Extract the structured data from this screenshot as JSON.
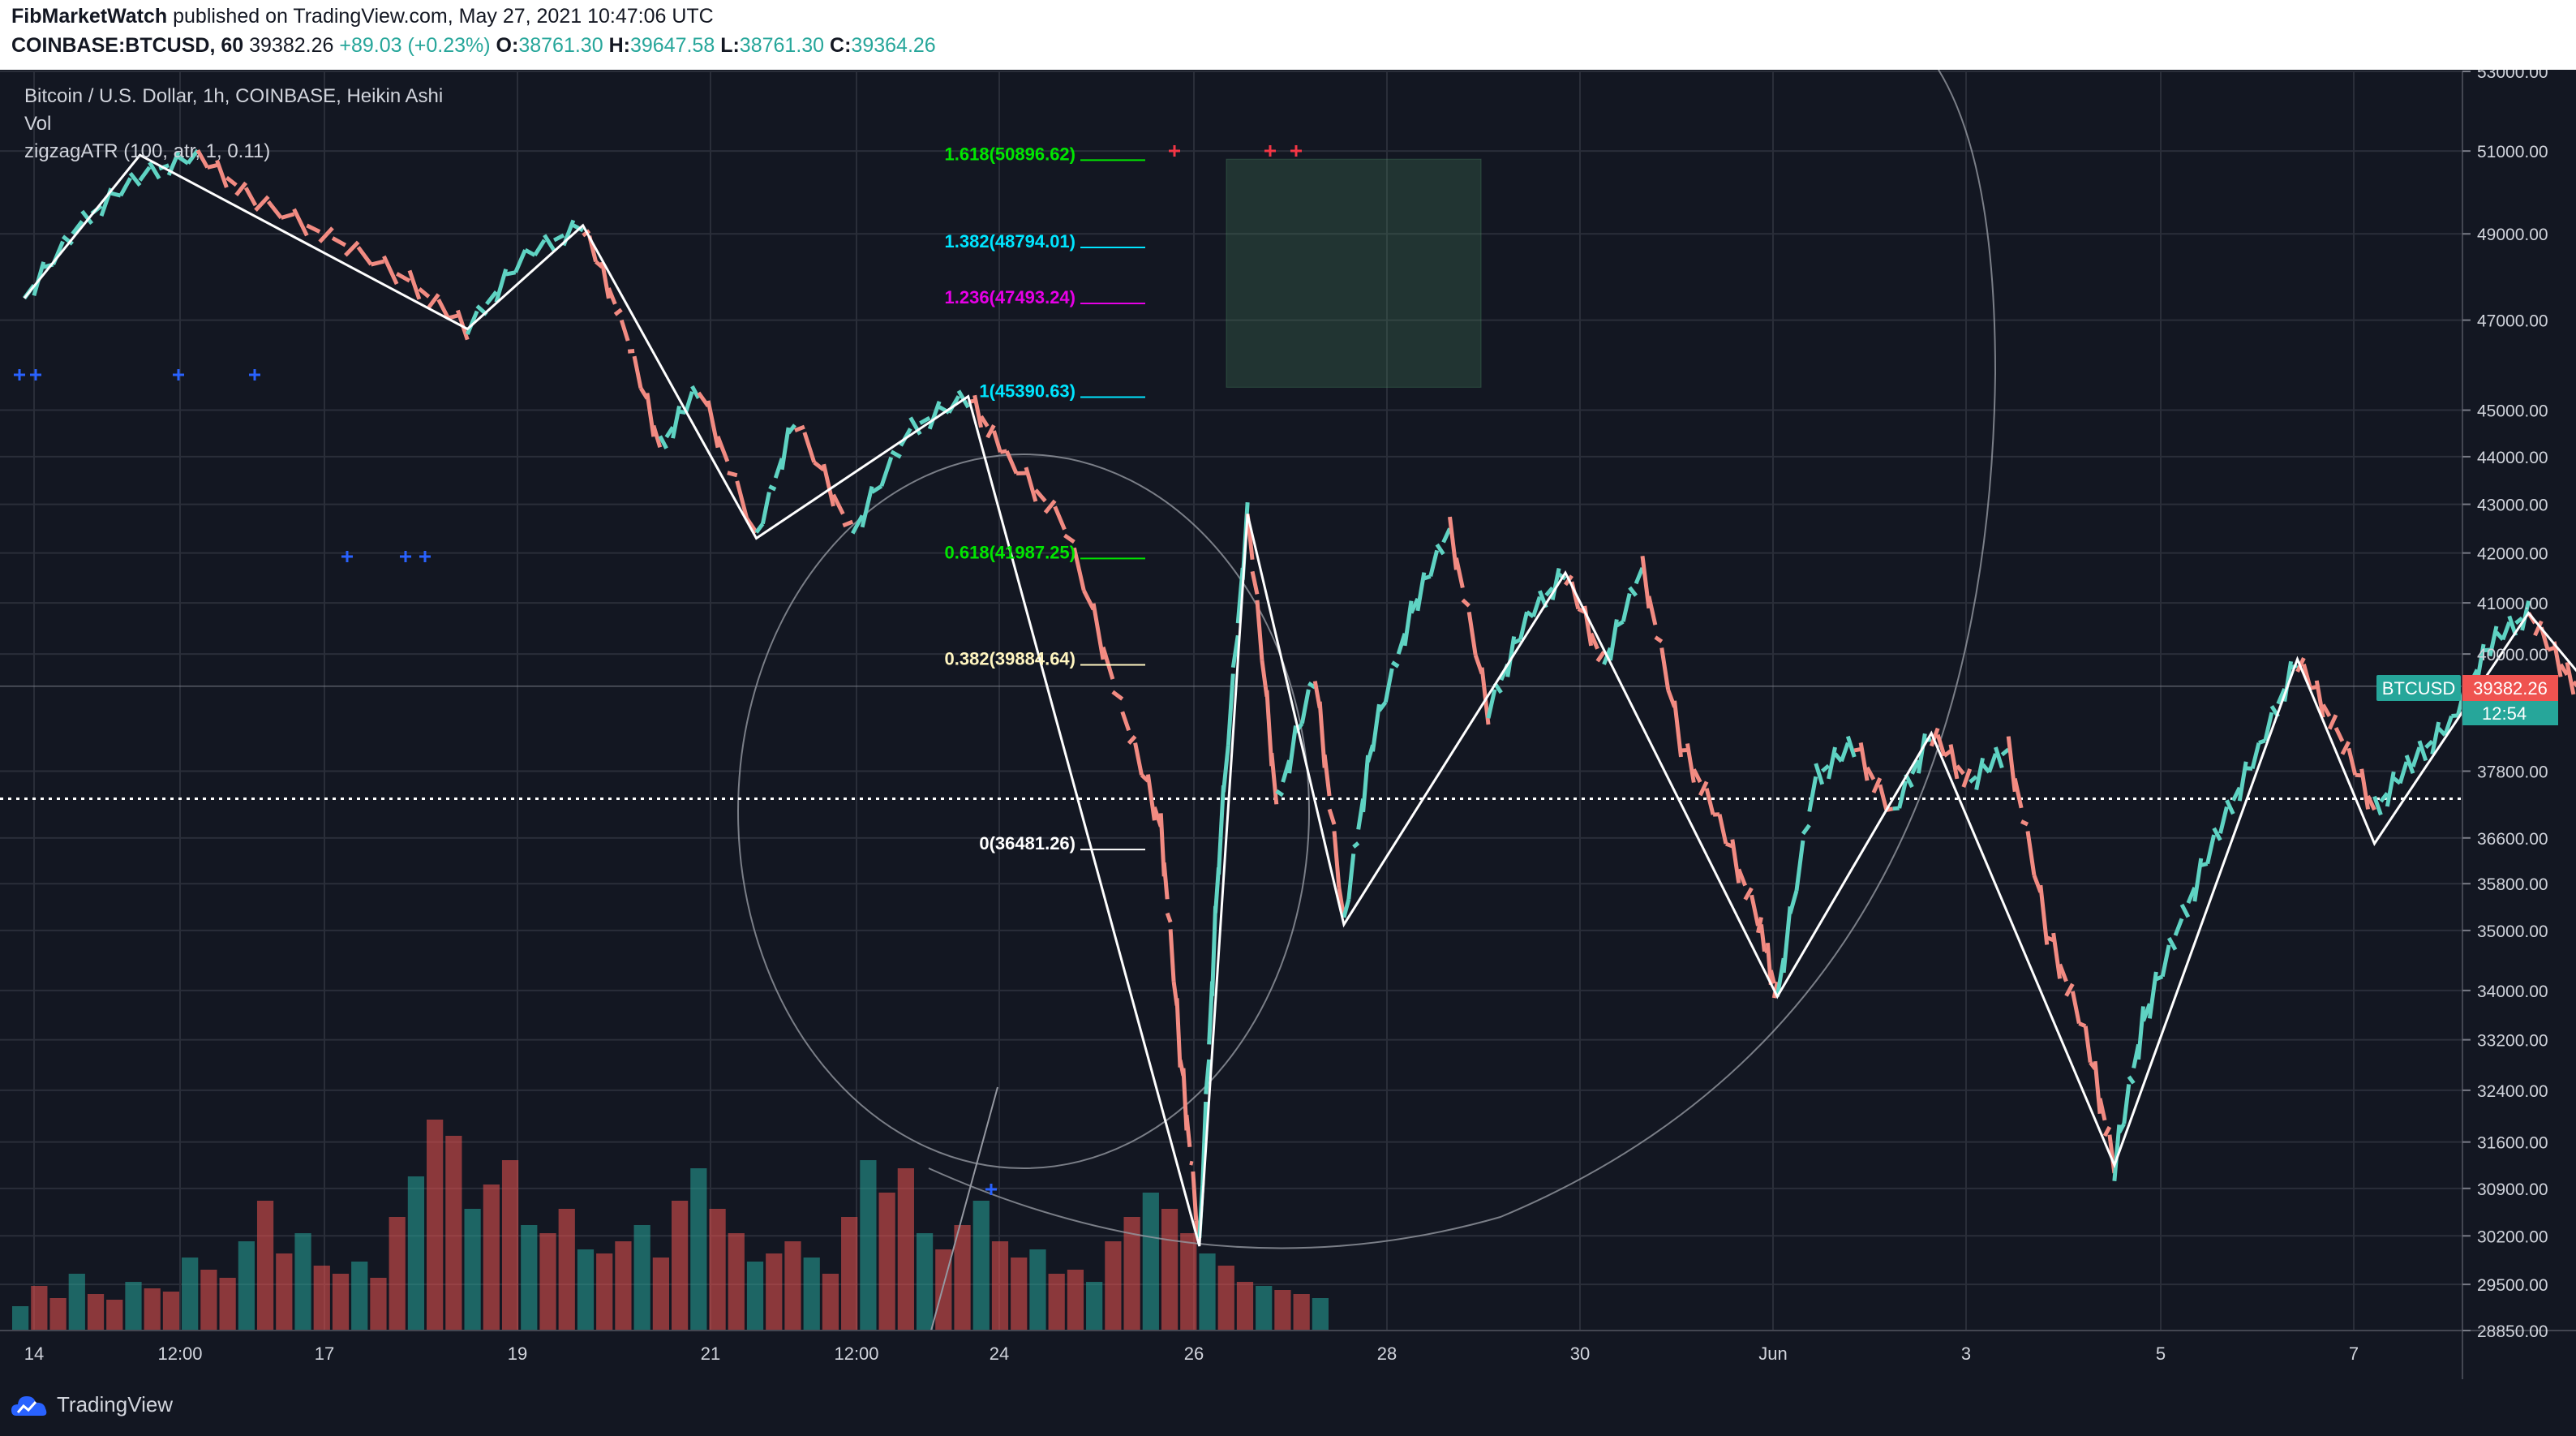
{
  "header": {
    "publisher": "FibMarketWatch",
    "published_text": "published on TradingView.com, May 27, 2021 10:47:06 UTC",
    "symbol": "COINBASE:BTCUSD, 60",
    "last": "39382.26",
    "change": "+89.03 (+0.23%)",
    "open_label": "O:",
    "open": "38761.30",
    "high_label": "H:",
    "high": "39647.58",
    "low_label": "L:",
    "low": "38761.30",
    "close_label": "C:",
    "close": "39364.26"
  },
  "legend": {
    "title": "Bitcoin / U.S. Dollar, 1h, COINBASE, Heikin Ashi",
    "vol": "Vol",
    "indicator": "zigzagATR (100, atr, 1, 0.11)"
  },
  "price_tag": {
    "symbol": "BTCUSD",
    "price": "39382.26",
    "countdown": "12:54",
    "color": "#ef5350",
    "symbol_color": "#26a69a"
  },
  "footer": {
    "brand": "TradingView"
  },
  "chart_data": {
    "type": "candlestick",
    "scale": "log",
    "ylim": [
      28850,
      53000
    ],
    "y_ticks": [
      53000,
      51000,
      49000,
      47000,
      45000,
      44000,
      43000,
      42000,
      41000,
      40000,
      37800,
      36600,
      35800,
      35000,
      34000,
      33200,
      32400,
      31600,
      30900,
      30200,
      29500,
      28850
    ],
    "x_ticks": [
      "14",
      "12:00",
      "17",
      "19",
      "21",
      "12:00",
      "24",
      "26",
      "28",
      "30",
      "Jun",
      "3",
      "5",
      "7"
    ],
    "price_series": [
      [
        14.0,
        47500
      ],
      [
        14.3,
        49300
      ],
      [
        14.6,
        50400
      ],
      [
        14.9,
        50900
      ],
      [
        15.2,
        49800
      ],
      [
        15.6,
        48900
      ],
      [
        16.0,
        47900
      ],
      [
        16.3,
        46800
      ],
      [
        16.6,
        48500
      ],
      [
        16.9,
        49200
      ],
      [
        17.1,
        47000
      ],
      [
        17.3,
        44200
      ],
      [
        17.5,
        45500
      ],
      [
        17.8,
        42300
      ],
      [
        18.0,
        44800
      ],
      [
        18.3,
        42400
      ],
      [
        18.6,
        44600
      ],
      [
        18.9,
        45300
      ],
      [
        19.1,
        44000
      ],
      [
        19.4,
        42600
      ],
      [
        19.7,
        38900
      ],
      [
        19.9,
        36800
      ],
      [
        20.0,
        33000
      ],
      [
        20.1,
        30050
      ],
      [
        20.2,
        36200
      ],
      [
        20.35,
        42800
      ],
      [
        20.5,
        37200
      ],
      [
        20.7,
        39600
      ],
      [
        20.85,
        35100
      ],
      [
        21.0,
        38400
      ],
      [
        21.2,
        40800
      ],
      [
        21.4,
        42500
      ],
      [
        21.6,
        38900
      ],
      [
        21.8,
        40700
      ],
      [
        22.0,
        41600
      ],
      [
        22.2,
        39800
      ],
      [
        22.4,
        41700
      ],
      [
        22.6,
        38300
      ],
      [
        22.8,
        36900
      ],
      [
        23.0,
        35200
      ],
      [
        23.1,
        33900
      ],
      [
        23.3,
        37700
      ],
      [
        23.5,
        38300
      ],
      [
        23.7,
        37000
      ],
      [
        23.9,
        38500
      ],
      [
        24.1,
        37600
      ],
      [
        24.3,
        38200
      ],
      [
        24.5,
        35000
      ],
      [
        24.7,
        33300
      ],
      [
        24.85,
        31250
      ],
      [
        25.0,
        33500
      ],
      [
        25.2,
        35200
      ],
      [
        25.4,
        36800
      ],
      [
        25.6,
        38200
      ],
      [
        25.8,
        39900
      ],
      [
        26.0,
        38600
      ],
      [
        26.2,
        37100
      ],
      [
        26.4,
        38000
      ],
      [
        26.6,
        38700
      ],
      [
        26.8,
        40200
      ],
      [
        27.0,
        40800
      ],
      [
        27.2,
        39600
      ],
      [
        27.4,
        38800
      ],
      [
        27.6,
        38400
      ],
      [
        27.8,
        37400
      ],
      [
        28.0,
        38300
      ],
      [
        28.2,
        39400
      ]
    ],
    "zigzag": [
      [
        14.0,
        47500
      ],
      [
        14.6,
        50900
      ],
      [
        16.3,
        46800
      ],
      [
        16.9,
        49200
      ],
      [
        17.8,
        42300
      ],
      [
        18.9,
        45300
      ],
      [
        20.1,
        30050
      ],
      [
        20.35,
        42800
      ],
      [
        20.85,
        35100
      ],
      [
        22.0,
        41600
      ],
      [
        23.1,
        33900
      ],
      [
        23.9,
        38500
      ],
      [
        24.85,
        31250
      ],
      [
        25.8,
        39900
      ],
      [
        26.2,
        36500
      ],
      [
        27.0,
        40800
      ],
      [
        27.8,
        37300
      ],
      [
        28.2,
        39400
      ]
    ],
    "volume": [
      30,
      55,
      40,
      70,
      45,
      38,
      60,
      52,
      48,
      90,
      75,
      65,
      110,
      160,
      95,
      120,
      80,
      70,
      85,
      65,
      140,
      190,
      260,
      240,
      150,
      180,
      210,
      130,
      120,
      150,
      100,
      95,
      110,
      130,
      90,
      160,
      200,
      150,
      120,
      85,
      95,
      110,
      90,
      70,
      140,
      210,
      170,
      200,
      120,
      100,
      130,
      160,
      110,
      90,
      100,
      70,
      75,
      60,
      110,
      140,
      170,
      150,
      120,
      95,
      80,
      60,
      55,
      50,
      45,
      40
    ],
    "fib_levels": [
      {
        "label": "1.618(50896.62)",
        "price": 50896.62,
        "color": "#00e600"
      },
      {
        "label": "1.382(48794.01)",
        "price": 48794.01,
        "color": "#00e5ff"
      },
      {
        "label": "1.236(47493.24)",
        "price": 47493.24,
        "color": "#e600e6"
      },
      {
        "label": "1(45390.63)",
        "price": 45390.63,
        "color": "#00e5ff"
      },
      {
        "label": "0.618(41987.25)",
        "price": 41987.25,
        "color": "#00e600"
      },
      {
        "label": "0.382(39884.64)",
        "price": 39884.64,
        "color": "#fff5c0"
      },
      {
        "label": "0(36481.26)",
        "price": 36481.26,
        "color": "#ffffff"
      }
    ],
    "target_box": {
      "x0": 27.0,
      "x1": 29.6,
      "y0": 45500,
      "y1": 50800
    },
    "dotted_level": 37300,
    "current_price": 39382.26
  }
}
